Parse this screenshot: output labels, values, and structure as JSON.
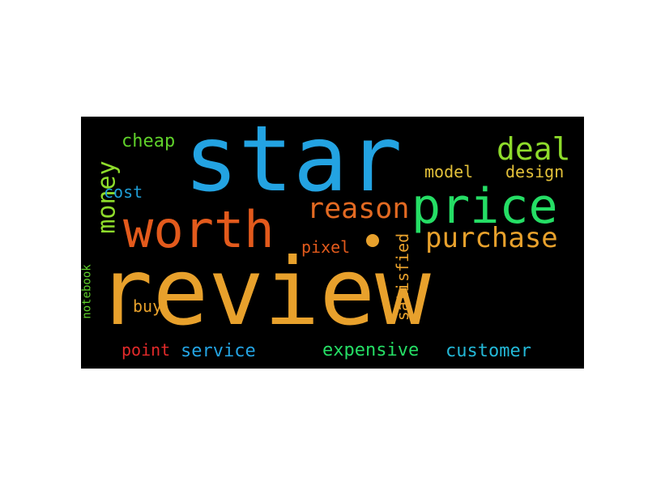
{
  "words": {
    "review": {
      "text": "review",
      "color": "#e8a12c"
    },
    "star": {
      "text": "star",
      "color": "#23a3e2"
    },
    "price": {
      "text": "price",
      "color": "#25de65"
    },
    "worth": {
      "text": "worth",
      "color": "#e35a1c"
    },
    "reason": {
      "text": "reason",
      "color": "#e36a22"
    },
    "purchase": {
      "text": "purchase",
      "color": "#e8a12c"
    },
    "deal": {
      "text": "deal",
      "color": "#8edc2b"
    },
    "money": {
      "text": "money",
      "color": "#8edc2b"
    },
    "cheap": {
      "text": "cheap",
      "color": "#5fd12a"
    },
    "model": {
      "text": "model",
      "color": "#e3c13a"
    },
    "design": {
      "text": "design",
      "color": "#e3c13a"
    },
    "cost": {
      "text": "cost",
      "color": "#1f9fd8"
    },
    "pixel": {
      "text": "pixel",
      "color": "#e35a1c"
    },
    "satisfied": {
      "text": "satisfied",
      "color": "#e8a12c"
    },
    "notebook": {
      "text": "notebook",
      "color": "#5fd12a"
    },
    "buy": {
      "text": "buy",
      "color": "#e8a12c"
    },
    "point": {
      "text": "point",
      "color": "#e32a2a"
    },
    "service": {
      "text": "service",
      "color": "#23a3e2"
    },
    "expensive": {
      "text": "expensive",
      "color": "#25de65"
    },
    "customer": {
      "text": "customer",
      "color": "#23b7d6"
    }
  },
  "dot_color": "#e8a12c"
}
